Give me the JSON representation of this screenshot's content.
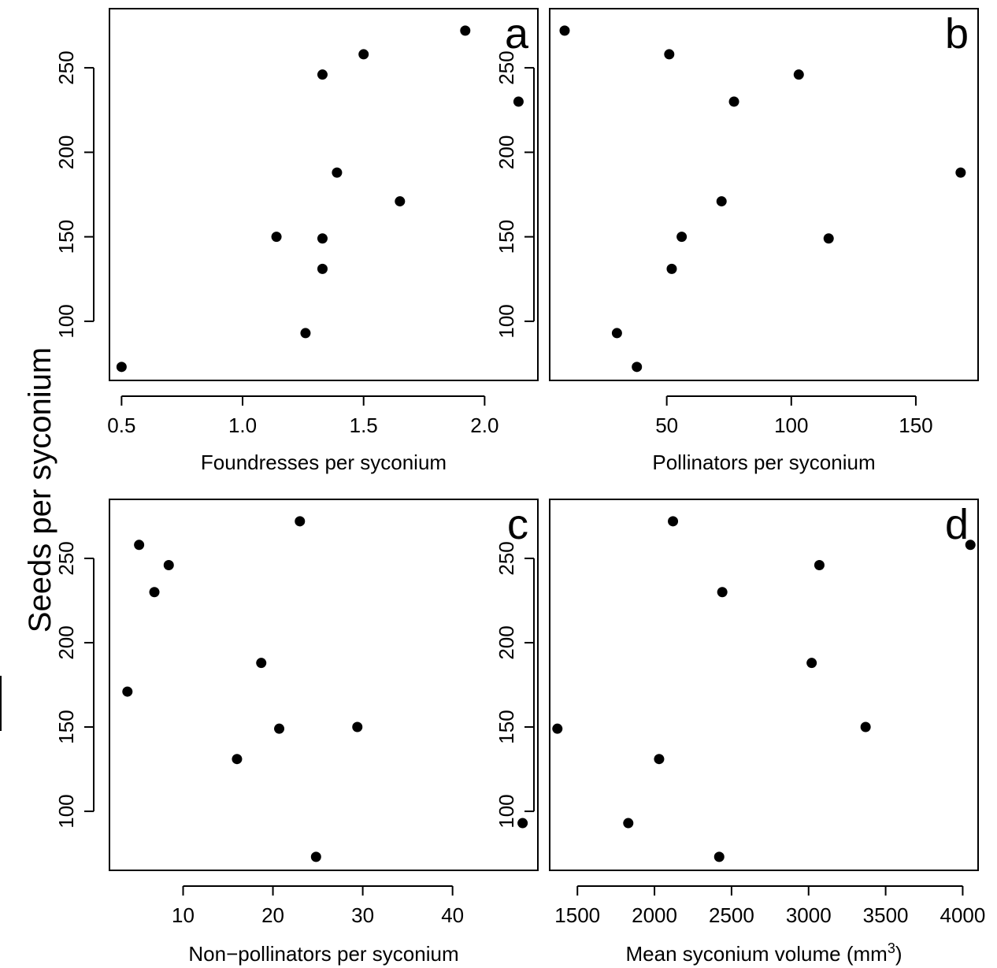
{
  "figure": {
    "ylabel": "Seeds per syconium"
  },
  "chart_data": [
    {
      "type": "scatter",
      "panel": "a",
      "xlabel": "Foundresses per syconium",
      "ylabel": "Seeds per syconium",
      "xlim": [
        0.45,
        2.22
      ],
      "ylim": [
        65,
        285
      ],
      "xticks": [
        0.5,
        1.0,
        1.5,
        2.0
      ],
      "xtick_labels": [
        "0.5",
        "1.0",
        "1.5",
        "2.0"
      ],
      "yticks": [
        100,
        150,
        200,
        250
      ],
      "ytick_labels": [
        "100",
        "150",
        "200",
        "250"
      ],
      "x": [
        0.5,
        1.26,
        1.14,
        1.33,
        1.33,
        1.65,
        1.39,
        2.14,
        1.33,
        1.5,
        1.92
      ],
      "y": [
        73,
        93,
        150,
        131,
        149,
        171,
        188,
        230,
        246,
        258,
        272
      ]
    },
    {
      "type": "scatter",
      "panel": "b",
      "xlabel": "Pollinators per syconium",
      "ylabel": "Seeds per syconium",
      "xlim": [
        3,
        175
      ],
      "ylim": [
        65,
        285
      ],
      "xticks": [
        50,
        100,
        150
      ],
      "xtick_labels": [
        "50",
        "100",
        "150"
      ],
      "yticks": [
        100,
        150,
        200,
        250
      ],
      "ytick_labels": [
        "100",
        "150",
        "200",
        "250"
      ],
      "x": [
        38,
        30,
        56,
        52,
        115,
        72,
        168,
        77,
        103,
        51,
        9
      ],
      "y": [
        73,
        93,
        150,
        131,
        149,
        171,
        188,
        230,
        246,
        258,
        272
      ]
    },
    {
      "type": "scatter",
      "panel": "c",
      "xlabel": "Non−pollinators per syconium",
      "ylabel": "Seeds per syconium",
      "xlim": [
        1.8,
        49.5
      ],
      "ylim": [
        65,
        285
      ],
      "xticks": [
        10,
        20,
        30,
        40
      ],
      "xtick_labels": [
        "10",
        "20",
        "30",
        "40"
      ],
      "yticks": [
        100,
        150,
        200,
        250
      ],
      "ytick_labels": [
        "100",
        "150",
        "200",
        "250"
      ],
      "x": [
        24.8,
        47.8,
        29.4,
        16.0,
        20.7,
        3.8,
        18.7,
        6.8,
        8.4,
        5.1,
        23.0
      ],
      "y": [
        73,
        93,
        150,
        131,
        149,
        171,
        188,
        230,
        246,
        258,
        272
      ]
    },
    {
      "type": "scatter",
      "panel": "d",
      "xlabel": "Mean syconium volume (mm",
      "xlabel_sup": "3",
      "xlabel_suffix": ")",
      "ylabel": "Seeds per syconium",
      "xlim": [
        1320,
        4100
      ],
      "ylim": [
        65,
        285
      ],
      "xticks": [
        1500,
        2000,
        2500,
        3000,
        3500,
        4000
      ],
      "xtick_labels": [
        "1500",
        "2000",
        "2500",
        "3000",
        "3500",
        "4000"
      ],
      "yticks": [
        100,
        150,
        200,
        250
      ],
      "ytick_labels": [
        "100",
        "150",
        "200",
        "250"
      ],
      "x": [
        2420,
        1830,
        3370,
        2030,
        1370,
        3020,
        2440,
        3070,
        4050,
        2120
      ],
      "y": [
        73,
        93,
        150,
        131,
        149,
        188,
        230,
        246,
        258,
        272
      ]
    }
  ]
}
